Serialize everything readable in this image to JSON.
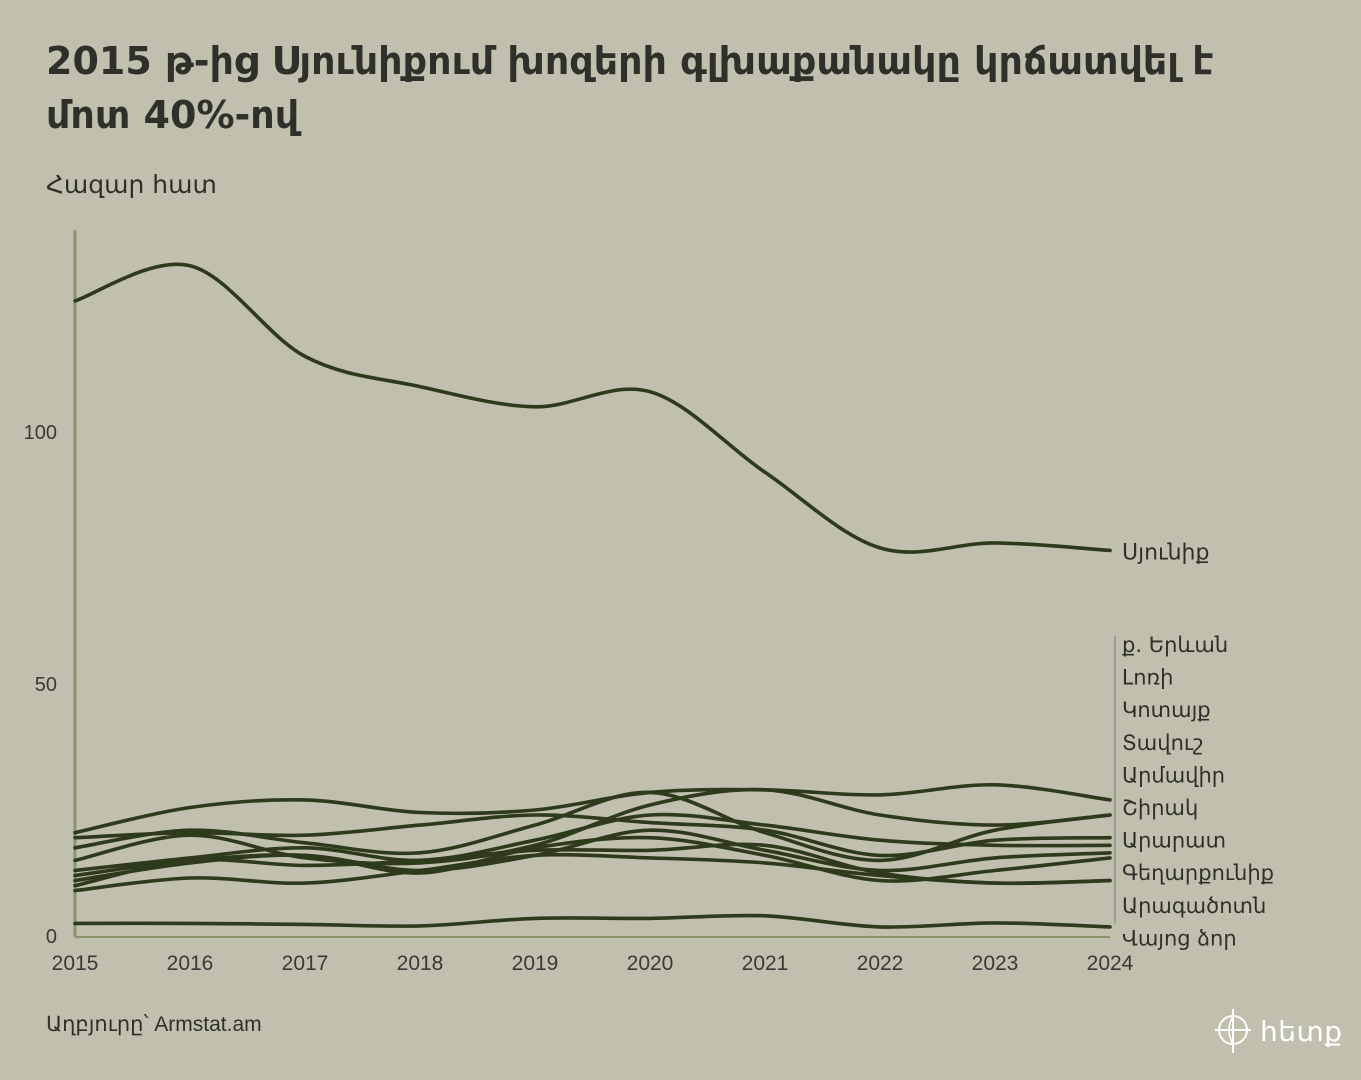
{
  "title": "2015 թ-ից Սյունիքում խոզերի գլխաքանակը կրճատվել է մոտ 40%-ով",
  "unit_label": "Հազար հատ",
  "source": "Աղբյուրը՝ Armstat.am",
  "logo": {
    "text": "հետք",
    "icon": "crosshair-globe-icon"
  },
  "colors": {
    "background": "#c1c0ae",
    "line": "#2e3a1c",
    "axis": "#8a9469",
    "text": "#2f302a"
  },
  "chart_data": {
    "type": "line",
    "title": "2015 թ-ից Սյունիքում խոզերի գլխաքանակը կրճատվել է մոտ 40%-ով",
    "ylabel": "Հազար հատ",
    "xlabel": "",
    "x": [
      "2015",
      "2016",
      "2017",
      "2018",
      "2019",
      "2020",
      "2021",
      "2022",
      "2023",
      "2024"
    ],
    "yticks": [
      "0",
      "50",
      "100"
    ],
    "ylim": [
      0,
      140
    ],
    "grid": false,
    "legend": "direct labels at right end of lines",
    "series": [
      {
        "name": "Սյունիք",
        "values": [
          126,
          133,
          115,
          109,
          105,
          108,
          92,
          77,
          78,
          76.5
        ]
      },
      {
        "name": "ք. Երևան",
        "values": [
          20.5,
          25.5,
          27,
          24.5,
          25,
          28.5,
          29,
          28,
          30,
          27
        ]
      },
      {
        "name": "Լոռի",
        "values": [
          19.5,
          20.5,
          20,
          22,
          24,
          22.5,
          21,
          16,
          19,
          19.5
        ]
      },
      {
        "name": "Կոտայք",
        "values": [
          17.5,
          21,
          18.5,
          16.5,
          22,
          28.5,
          20.5,
          15,
          21,
          24
        ]
      },
      {
        "name": "Տավուշ",
        "values": [
          15,
          20,
          15.5,
          14.5,
          18,
          26,
          29,
          24,
          22,
          24
        ]
      },
      {
        "name": "Արմավիր",
        "values": [
          13,
          15.5,
          17.5,
          15,
          19,
          24,
          22,
          19,
          18,
          18
        ]
      },
      {
        "name": "Շիրակ",
        "values": [
          12,
          15,
          16,
          13,
          16,
          21,
          17,
          13,
          15.5,
          16.5
        ]
      },
      {
        "name": "Արարատ",
        "values": [
          11,
          14.5,
          16,
          12.5,
          17.5,
          19.5,
          16,
          11,
          13,
          15.5
        ]
      },
      {
        "name": "Գեղարքունիք",
        "values": [
          10,
          15,
          14,
          15,
          17,
          17,
          18,
          12.5,
          10.5,
          11
        ]
      },
      {
        "name": "Արագածոտն",
        "values": [
          9,
          11.5,
          10.5,
          13,
          16,
          15.5,
          14.5,
          12,
          10.5,
          11
        ]
      },
      {
        "name": "Վայոց ձոր",
        "values": [
          2.5,
          2.5,
          2.3,
          2.0,
          3.5,
          3.5,
          4.0,
          1.8,
          2.6,
          1.8
        ]
      }
    ]
  }
}
